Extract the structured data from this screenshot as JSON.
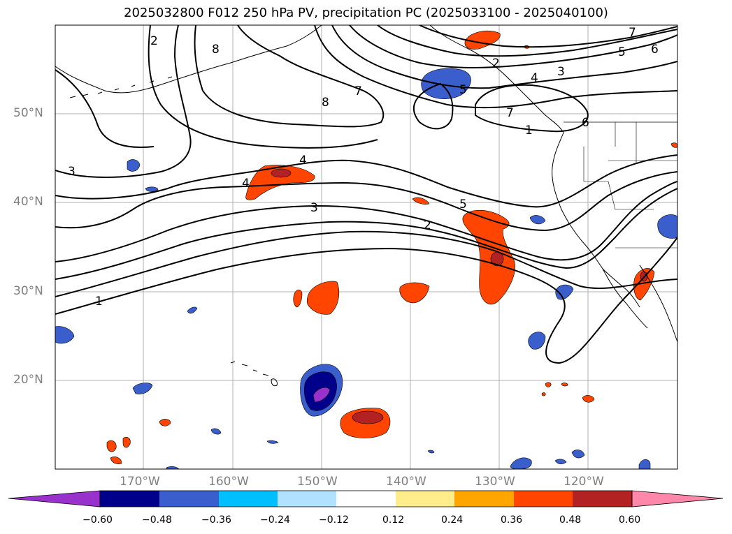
{
  "title": "2025032800 F012 250 hPa PV, precipitation PC (2025033100 - 2025040100)",
  "lat_labels": [
    "50°N",
    "40°N",
    "30°N",
    "20°N"
  ],
  "lon_labels": [
    "170°W",
    "160°W",
    "150°W",
    "140°W",
    "130°W",
    "120°W"
  ],
  "contour_labels": [
    "2",
    "8",
    "2",
    "3",
    "4",
    "7",
    "6",
    "5",
    "8",
    "5",
    "7",
    "7",
    "1",
    "6",
    "3",
    "4",
    "4",
    "3",
    "5",
    "2",
    "1"
  ],
  "colorbar": {
    "ticks": [
      "−0.60",
      "−0.48",
      "−0.36",
      "−0.24",
      "−0.12",
      "0.12",
      "0.24",
      "0.36",
      "0.48",
      "0.60"
    ],
    "colors": [
      "#9932cc",
      "#00008b",
      "#3a5fcd",
      "#00bfff",
      "#b0e2ff",
      "#ffffff",
      "#ffec8b",
      "#ffa500",
      "#ff4500",
      "#b22222",
      "#ff88aa"
    ]
  },
  "palette": {
    "neg_strong": "#00008b",
    "neg_mid": "#3a5fcd",
    "neg_light": "#00bfff",
    "neg_pale": "#b0e2ff",
    "neg_violet": "#9932cc",
    "pos_pale": "#ffec8b",
    "pos_light": "#ffa500",
    "pos_mid": "#ff4500",
    "pos_strong": "#b22222"
  }
}
